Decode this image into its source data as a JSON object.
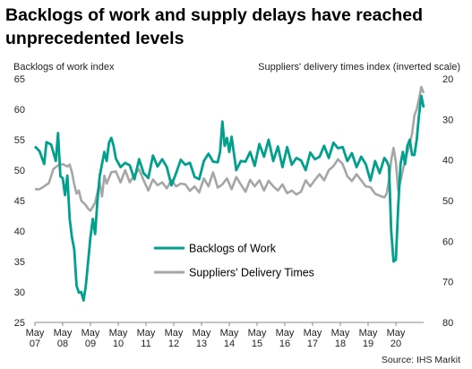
{
  "chart_data": {
    "type": "line",
    "title": "Backlogs of work and supply delays have reached unprecedented levels",
    "y_left_label": "Backlogs of work index",
    "y_right_label": "Suppliers' delivery times index (inverted scale)",
    "y_left_range": [
      25,
      65
    ],
    "y_left_ticks": [
      "25",
      "30",
      "35",
      "40",
      "45",
      "50",
      "55",
      "60",
      "65"
    ],
    "y_right_range": [
      80,
      20
    ],
    "y_right_inverted": true,
    "y_right_ticks": [
      "80",
      "70",
      "60",
      "50",
      "40",
      "30",
      "20"
    ],
    "x_range": [
      "2007-05",
      "2021-05"
    ],
    "x_ticks": [
      {
        "month": "May",
        "year": "07"
      },
      {
        "month": "May",
        "year": "08"
      },
      {
        "month": "May",
        "year": "09"
      },
      {
        "month": "May",
        "year": "10"
      },
      {
        "month": "May",
        "year": "11"
      },
      {
        "month": "May",
        "year": "12"
      },
      {
        "month": "May",
        "year": "13"
      },
      {
        "month": "May",
        "year": "14"
      },
      {
        "month": "May",
        "year": "15"
      },
      {
        "month": "May",
        "year": "16"
      },
      {
        "month": "May",
        "year": "17"
      },
      {
        "month": "May",
        "year": "18"
      },
      {
        "month": "May",
        "year": "19"
      },
      {
        "month": "May",
        "year": "20"
      }
    ],
    "grid": false,
    "legend_position": "center",
    "series": [
      {
        "name": "Backlogs of Work",
        "axis": "left",
        "color": "#00A08C",
        "points": [
          [
            "2007-05",
            53.9
          ],
          [
            "2007-07",
            53.1
          ],
          [
            "2007-09",
            51.0
          ],
          [
            "2007-10",
            54.6
          ],
          [
            "2007-12",
            54.2
          ],
          [
            "2008-02",
            51.5
          ],
          [
            "2008-03",
            56.1
          ],
          [
            "2008-04",
            49.0
          ],
          [
            "2008-05",
            48.7
          ],
          [
            "2008-06",
            45.9
          ],
          [
            "2008-07",
            49.1
          ],
          [
            "2008-08",
            42.0
          ],
          [
            "2008-09",
            39.0
          ],
          [
            "2008-10",
            37.0
          ],
          [
            "2008-11",
            31.0
          ],
          [
            "2008-12",
            29.9
          ],
          [
            "2009-01",
            30.0
          ],
          [
            "2009-02",
            28.6
          ],
          [
            "2009-03",
            31.0
          ],
          [
            "2009-04",
            35.0
          ],
          [
            "2009-05",
            39.0
          ],
          [
            "2009-06",
            42.0
          ],
          [
            "2009-07",
            39.5
          ],
          [
            "2009-08",
            45.0
          ],
          [
            "2009-09",
            49.0
          ],
          [
            "2009-10",
            51.0
          ],
          [
            "2009-11",
            53.0
          ],
          [
            "2009-12",
            51.5
          ],
          [
            "2010-01",
            54.5
          ],
          [
            "2010-02",
            55.3
          ],
          [
            "2010-03",
            54.0
          ],
          [
            "2010-04",
            51.9
          ],
          [
            "2010-06",
            50.5
          ],
          [
            "2010-08",
            51.2
          ],
          [
            "2010-10",
            50.8
          ],
          [
            "2010-12",
            48.5
          ],
          [
            "2011-02",
            51.8
          ],
          [
            "2011-04",
            49.5
          ],
          [
            "2011-06",
            48.7
          ],
          [
            "2011-08",
            52.4
          ],
          [
            "2011-10",
            50.6
          ],
          [
            "2011-12",
            51.8
          ],
          [
            "2012-02",
            50.5
          ],
          [
            "2012-04",
            47.5
          ],
          [
            "2012-06",
            49.5
          ],
          [
            "2012-08",
            51.7
          ],
          [
            "2012-10",
            50.9
          ],
          [
            "2012-12",
            51.2
          ],
          [
            "2013-02",
            48.9
          ],
          [
            "2013-04",
            48.5
          ],
          [
            "2013-06",
            51.5
          ],
          [
            "2013-08",
            52.7
          ],
          [
            "2013-10",
            51.4
          ],
          [
            "2013-12",
            51.3
          ],
          [
            "2014-01",
            53.0
          ],
          [
            "2014-02",
            58.0
          ],
          [
            "2014-03",
            54.0
          ],
          [
            "2014-04",
            55.3
          ],
          [
            "2014-05",
            53.0
          ],
          [
            "2014-06",
            55.5
          ],
          [
            "2014-08",
            50.0
          ],
          [
            "2014-10",
            51.5
          ],
          [
            "2014-12",
            51.4
          ],
          [
            "2015-02",
            53.0
          ],
          [
            "2015-04",
            50.7
          ],
          [
            "2015-06",
            54.3
          ],
          [
            "2015-08",
            52.2
          ],
          [
            "2015-10",
            55.0
          ],
          [
            "2015-12",
            51.5
          ],
          [
            "2016-02",
            53.9
          ],
          [
            "2016-04",
            50.5
          ],
          [
            "2016-06",
            53.8
          ],
          [
            "2016-08",
            50.9
          ],
          [
            "2016-10",
            52.0
          ],
          [
            "2016-12",
            51.6
          ],
          [
            "2017-02",
            50.0
          ],
          [
            "2017-04",
            52.9
          ],
          [
            "2017-06",
            51.8
          ],
          [
            "2017-08",
            52.2
          ],
          [
            "2017-10",
            54.0
          ],
          [
            "2017-12",
            52.0
          ],
          [
            "2018-02",
            54.5
          ],
          [
            "2018-04",
            53.6
          ],
          [
            "2018-06",
            53.8
          ],
          [
            "2018-08",
            51.5
          ],
          [
            "2018-10",
            52.8
          ],
          [
            "2018-12",
            50.5
          ],
          [
            "2019-02",
            52.2
          ],
          [
            "2019-04",
            51.0
          ],
          [
            "2019-06",
            48.3
          ],
          [
            "2019-08",
            51.5
          ],
          [
            "2019-10",
            49.5
          ],
          [
            "2019-12",
            52.0
          ],
          [
            "2020-01",
            51.5
          ],
          [
            "2020-02",
            50.6
          ],
          [
            "2020-03",
            40.0
          ],
          [
            "2020-04",
            35.0
          ],
          [
            "2020-05",
            35.3
          ],
          [
            "2020-06",
            44.0
          ],
          [
            "2020-07",
            51.0
          ],
          [
            "2020-08",
            53.0
          ],
          [
            "2020-09",
            51.0
          ],
          [
            "2020-10",
            54.0
          ],
          [
            "2020-11",
            55.0
          ],
          [
            "2020-12",
            52.5
          ],
          [
            "2021-01",
            52.5
          ],
          [
            "2021-02",
            55.0
          ],
          [
            "2021-03",
            59.0
          ],
          [
            "2021-04",
            62.2
          ],
          [
            "2021-05",
            60.3
          ]
        ]
      },
      {
        "name": "Suppliers' Delivery Times",
        "axis": "right",
        "color": "#A6A6A6",
        "points": [
          [
            "2007-05",
            47.2
          ],
          [
            "2007-07",
            47.2
          ],
          [
            "2007-09",
            46.5
          ],
          [
            "2007-11",
            45.7
          ],
          [
            "2008-01",
            42.2
          ],
          [
            "2008-03",
            41.3
          ],
          [
            "2008-05",
            41.0
          ],
          [
            "2008-07",
            41.6
          ],
          [
            "2008-08",
            41.1
          ],
          [
            "2008-09",
            43.0
          ],
          [
            "2008-10",
            46.0
          ],
          [
            "2008-11",
            48.3
          ],
          [
            "2008-12",
            47.5
          ],
          [
            "2009-01",
            50.0
          ],
          [
            "2009-02",
            50.6
          ],
          [
            "2009-03",
            51.1
          ],
          [
            "2009-04",
            52.0
          ],
          [
            "2009-05",
            52.5
          ],
          [
            "2009-06",
            51.5
          ],
          [
            "2009-07",
            50.5
          ],
          [
            "2009-08",
            48.0
          ],
          [
            "2009-09",
            45.5
          ],
          [
            "2009-10",
            49.0
          ],
          [
            "2009-11",
            43.9
          ],
          [
            "2009-12",
            45.8
          ],
          [
            "2010-02",
            43.0
          ],
          [
            "2010-04",
            42.8
          ],
          [
            "2010-06",
            45.5
          ],
          [
            "2010-08",
            42.5
          ],
          [
            "2010-10",
            45.5
          ],
          [
            "2010-12",
            43.6
          ],
          [
            "2011-02",
            42.3
          ],
          [
            "2011-04",
            45.0
          ],
          [
            "2011-06",
            47.5
          ],
          [
            "2011-08",
            44.8
          ],
          [
            "2011-10",
            46.2
          ],
          [
            "2011-12",
            45.5
          ],
          [
            "2012-02",
            47.0
          ],
          [
            "2012-04",
            44.9
          ],
          [
            "2012-06",
            46.5
          ],
          [
            "2012-08",
            45.8
          ],
          [
            "2012-10",
            46.0
          ],
          [
            "2012-12",
            47.6
          ],
          [
            "2013-02",
            46.5
          ],
          [
            "2013-04",
            48.0
          ],
          [
            "2013-06",
            44.5
          ],
          [
            "2013-08",
            46.5
          ],
          [
            "2013-10",
            43.0
          ],
          [
            "2013-12",
            46.8
          ],
          [
            "2014-02",
            46.0
          ],
          [
            "2014-04",
            44.5
          ],
          [
            "2014-06",
            47.2
          ],
          [
            "2014-08",
            44.2
          ],
          [
            "2014-10",
            46.0
          ],
          [
            "2014-12",
            47.8
          ],
          [
            "2015-02",
            44.9
          ],
          [
            "2015-04",
            46.5
          ],
          [
            "2015-06",
            45.0
          ],
          [
            "2015-08",
            47.5
          ],
          [
            "2015-10",
            45.1
          ],
          [
            "2015-12",
            46.5
          ],
          [
            "2016-02",
            47.5
          ],
          [
            "2016-04",
            46.0
          ],
          [
            "2016-06",
            48.2
          ],
          [
            "2016-08",
            47.5
          ],
          [
            "2016-10",
            48.5
          ],
          [
            "2016-12",
            47.8
          ],
          [
            "2017-02",
            45.0
          ],
          [
            "2017-04",
            46.5
          ],
          [
            "2017-06",
            44.9
          ],
          [
            "2017-08",
            43.5
          ],
          [
            "2017-10",
            45.0
          ],
          [
            "2017-12",
            42.5
          ],
          [
            "2018-02",
            41.5
          ],
          [
            "2018-04",
            39.8
          ],
          [
            "2018-06",
            41.0
          ],
          [
            "2018-08",
            44.0
          ],
          [
            "2018-10",
            45.2
          ],
          [
            "2018-12",
            43.5
          ],
          [
            "2019-02",
            45.0
          ],
          [
            "2019-04",
            46.5
          ],
          [
            "2019-06",
            46.7
          ],
          [
            "2019-08",
            48.3
          ],
          [
            "2019-10",
            48.8
          ],
          [
            "2019-12",
            49.2
          ],
          [
            "2020-01",
            48.3
          ],
          [
            "2020-02",
            45.0
          ],
          [
            "2020-03",
            40.0
          ],
          [
            "2020-04",
            37.0
          ],
          [
            "2020-05",
            40.5
          ],
          [
            "2020-06",
            47.5
          ],
          [
            "2020-07",
            45.2
          ],
          [
            "2020-08",
            42.5
          ],
          [
            "2020-09",
            40.0
          ],
          [
            "2020-10",
            38.0
          ],
          [
            "2020-11",
            36.0
          ],
          [
            "2020-12",
            33.5
          ],
          [
            "2021-01",
            29.0
          ],
          [
            "2021-02",
            27.5
          ],
          [
            "2021-03",
            25.0
          ],
          [
            "2021-04",
            22.0
          ],
          [
            "2021-05",
            23.5
          ]
        ]
      }
    ],
    "source": "Source: IHS Markit"
  },
  "colors": {
    "backlogs": "#00A08C",
    "deliveries": "#A6A6A6",
    "axis": "#888888"
  }
}
